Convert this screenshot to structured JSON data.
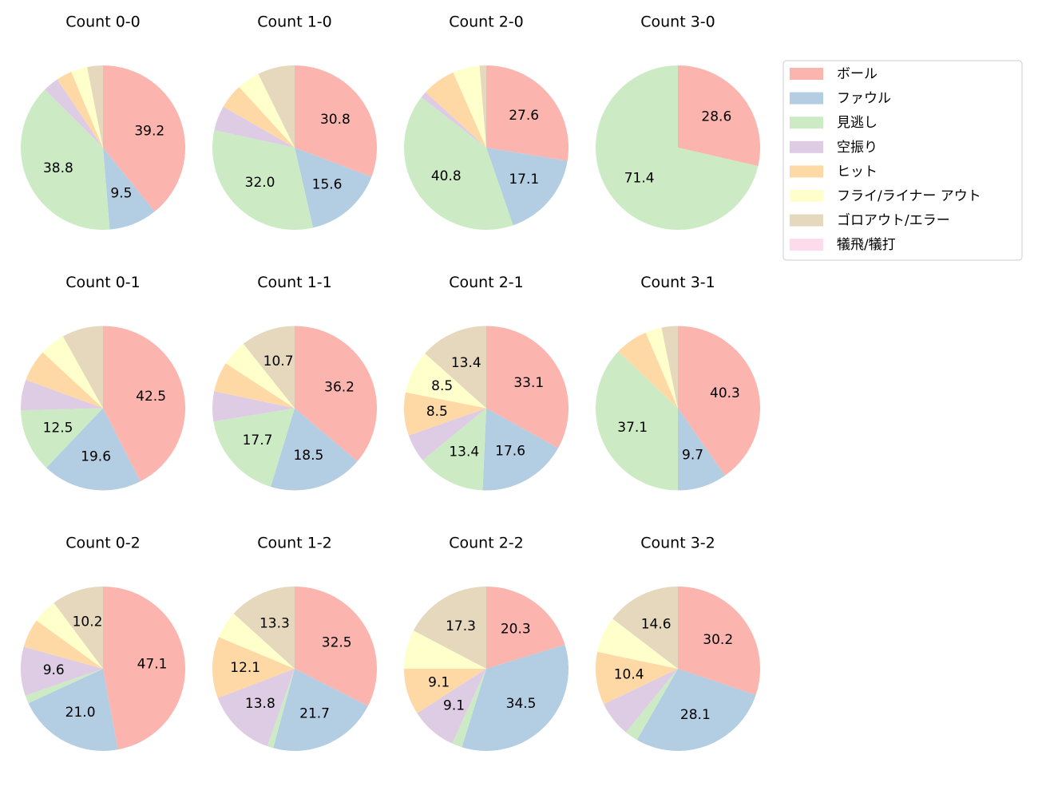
{
  "chart_data": [
    {
      "type": "pie",
      "title": "Count 0-0",
      "values": [
        39.2,
        9.5,
        38.8,
        3.1,
        3.1,
        3.2,
        3.1,
        0
      ],
      "value_labels": [
        "39.2",
        "9.5",
        "38.8",
        null,
        null,
        null,
        null,
        null
      ]
    },
    {
      "type": "pie",
      "title": "Count 1-0",
      "values": [
        30.8,
        15.6,
        32.0,
        4.9,
        4.9,
        4.5,
        7.3,
        0
      ],
      "value_labels": [
        "30.8",
        "15.6",
        "32.0",
        null,
        null,
        null,
        null,
        null
      ]
    },
    {
      "type": "pie",
      "title": "Count 2-0",
      "values": [
        27.6,
        17.1,
        40.8,
        1.3,
        6.6,
        5.3,
        1.3,
        0
      ],
      "value_labels": [
        "27.6",
        "17.1",
        "40.8",
        null,
        null,
        null,
        null,
        null
      ]
    },
    {
      "type": "pie",
      "title": "Count 3-0",
      "values": [
        28.6,
        0,
        71.4,
        0,
        0,
        0,
        0,
        0
      ],
      "value_labels": [
        "28.6",
        null,
        "71.4",
        null,
        null,
        null,
        null,
        null
      ]
    },
    {
      "type": "pie",
      "title": "Count 0-1",
      "values": [
        42.5,
        19.6,
        12.5,
        6.0,
        6.3,
        5.0,
        8.1,
        0
      ],
      "value_labels": [
        "42.5",
        "19.6",
        "12.5",
        null,
        null,
        null,
        null,
        null
      ]
    },
    {
      "type": "pie",
      "title": "Count 1-1",
      "values": [
        36.2,
        18.5,
        17.7,
        5.9,
        5.9,
        5.1,
        10.7,
        0
      ],
      "value_labels": [
        "36.2",
        "18.5",
        "17.7",
        null,
        null,
        null,
        "10.7",
        null
      ]
    },
    {
      "type": "pie",
      "title": "Count 2-1",
      "values": [
        33.1,
        17.6,
        13.4,
        5.5,
        8.5,
        8.5,
        13.4,
        0
      ],
      "value_labels": [
        "33.1",
        "17.6",
        "13.4",
        null,
        "8.5",
        "8.5",
        "13.4",
        null
      ]
    },
    {
      "type": "pie",
      "title": "Count 3-1",
      "values": [
        40.3,
        9.7,
        37.1,
        0,
        6.5,
        3.2,
        3.2,
        0
      ],
      "value_labels": [
        "40.3",
        "9.7",
        "37.1",
        null,
        null,
        null,
        null,
        null
      ]
    },
    {
      "type": "pie",
      "title": "Count 0-2",
      "values": [
        47.1,
        21.0,
        1.6,
        9.6,
        5.7,
        4.8,
        10.2,
        0
      ],
      "value_labels": [
        "47.1",
        "21.0",
        null,
        "9.6",
        null,
        null,
        "10.2",
        null
      ]
    },
    {
      "type": "pie",
      "title": "Count 1-2",
      "values": [
        32.5,
        21.7,
        1.2,
        13.8,
        12.1,
        5.4,
        13.3,
        0
      ],
      "value_labels": [
        "32.5",
        "21.7",
        null,
        "13.8",
        "12.1",
        null,
        "13.3",
        null
      ]
    },
    {
      "type": "pie",
      "title": "Count 2-2",
      "values": [
        20.3,
        34.5,
        2.0,
        9.1,
        9.1,
        7.7,
        17.3,
        0
      ],
      "value_labels": [
        "20.3",
        "34.5",
        null,
        "9.1",
        "9.1",
        null,
        "17.3",
        null
      ]
    },
    {
      "type": "pie",
      "title": "Count 3-2",
      "values": [
        30.2,
        28.1,
        2.6,
        7.0,
        10.4,
        7.1,
        14.6,
        0
      ],
      "value_labels": [
        "30.2",
        "28.1",
        null,
        null,
        "10.4",
        null,
        "14.6",
        null
      ]
    }
  ],
  "legend": {
    "labels": [
      "ボール",
      "ファウル",
      "見逃し",
      "空振り",
      "ヒット",
      "フライ/ライナー アウト",
      "ゴロアウト/エラー",
      "犠飛/犠打"
    ],
    "colors": [
      "#fbb4ae",
      "#b3cde3",
      "#ccebc5",
      "#decbe4",
      "#fed9a6",
      "#ffffcc",
      "#e5d8bd",
      "#fddaec"
    ],
    "position": "upper right"
  }
}
